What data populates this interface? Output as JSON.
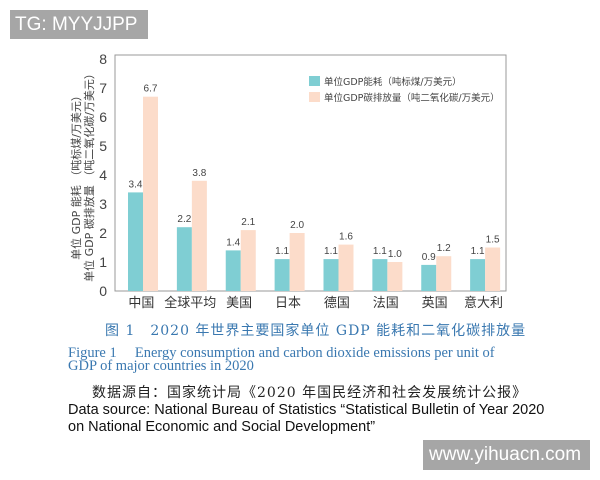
{
  "watermarks": {
    "top_left": "TG: MYYJJPP",
    "bottom_right": "www.yihuacn.com"
  },
  "chart_data": {
    "type": "bar",
    "categories": [
      "中国",
      "全球平均",
      "美国",
      "日本",
      "德国",
      "法国",
      "英国",
      "意大利"
    ],
    "series": [
      {
        "name": "单位GDP能耗（吨标煤/万美元）",
        "color": "#7fced3",
        "values": [
          3.4,
          2.2,
          1.4,
          1.1,
          1.1,
          1.1,
          0.9,
          1.1
        ]
      },
      {
        "name": "单位GDP碳排放量（吨二氧化碳/万美元）",
        "color": "#fcdcca",
        "values": [
          6.7,
          3.8,
          2.1,
          2.0,
          1.6,
          1.0,
          1.2,
          1.5
        ]
      }
    ],
    "ylabel_lines": [
      "单位 GDP 能耗 （吨标煤/万美元）",
      "单位 GDP 碳排放量 （吨二氧化碳/万美元）"
    ],
    "ylim": [
      0,
      8
    ],
    "yticks": [
      0,
      1,
      2,
      3,
      4,
      5,
      6,
      7,
      8
    ],
    "legend": "top-right",
    "grid": false
  },
  "caption": {
    "cn": "图 1　2020 年世界主要国家单位 GDP 能耗和二氧化碳排放量",
    "en_line1": "Figure 1　 Energy consumption and carbon dioxide emissions per unit of",
    "en_line2": "GDP of major countries in 2020"
  },
  "source": {
    "cn": "数据源自：国家统计局《2020 年国民经济和社会发展统计公报》",
    "en_line1": "Data source: National Bureau of Statistics “Statistical Bulletin of Year 2020",
    "en_line2": "on National Economic and Social Development”"
  }
}
